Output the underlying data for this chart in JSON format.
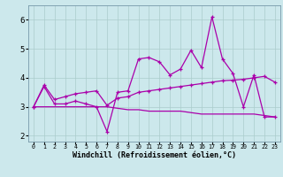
{
  "xlabel": "Windchill (Refroidissement éolien,°C)",
  "background_color": "#cce8ec",
  "grid_color": "#aacccc",
  "line_color": "#aa00aa",
  "x_hours": [
    0,
    1,
    2,
    3,
    4,
    5,
    6,
    7,
    8,
    9,
    10,
    11,
    12,
    13,
    14,
    15,
    16,
    17,
    18,
    19,
    20,
    21,
    22,
    23
  ],
  "line1_y": [
    3.0,
    3.7,
    3.1,
    3.1,
    3.2,
    3.1,
    3.0,
    2.15,
    3.5,
    3.55,
    4.65,
    4.7,
    4.55,
    4.1,
    4.3,
    4.95,
    4.35,
    6.1,
    4.65,
    4.15,
    3.0,
    4.1,
    2.65,
    2.65
  ],
  "line2_y": [
    3.0,
    3.75,
    3.25,
    3.35,
    3.45,
    3.5,
    3.55,
    3.05,
    3.3,
    3.35,
    3.5,
    3.55,
    3.6,
    3.65,
    3.7,
    3.75,
    3.8,
    3.85,
    3.9,
    3.92,
    3.95,
    4.0,
    4.05,
    3.85
  ],
  "line3_y": [
    3.0,
    3.0,
    3.0,
    3.0,
    3.0,
    3.0,
    3.0,
    3.0,
    2.95,
    2.9,
    2.9,
    2.85,
    2.85,
    2.85,
    2.85,
    2.8,
    2.75,
    2.75,
    2.75,
    2.75,
    2.75,
    2.75,
    2.7,
    2.65
  ],
  "ylim": [
    1.8,
    6.5
  ],
  "yticks": [
    2,
    3,
    4,
    5,
    6
  ],
  "xticks": [
    0,
    1,
    2,
    3,
    4,
    5,
    6,
    7,
    8,
    9,
    10,
    11,
    12,
    13,
    14,
    15,
    16,
    17,
    18,
    19,
    20,
    21,
    22,
    23
  ],
  "xlabel_fontsize": 6.0,
  "tick_fontsize_x": 4.8,
  "tick_fontsize_y": 6.5
}
